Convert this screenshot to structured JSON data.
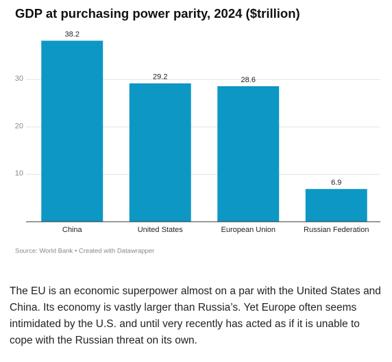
{
  "chart_data": {
    "type": "bar",
    "title": "GDP at purchasing power parity, 2024 ($trillion)",
    "categories": [
      "China",
      "United States",
      "European Union",
      "Russian Federation"
    ],
    "values": [
      38.2,
      29.2,
      28.6,
      6.9
    ],
    "color": "#0c97c4",
    "ylim": [
      0,
      40
    ],
    "yticks": [
      10,
      20,
      30
    ],
    "grid": true,
    "source": "Source: World Bank • Created with Datawrapper"
  },
  "body_text": "The EU is an economic superpower almost on a par with the United States and China. Its economy is vastly larger than Russia’s. Yet Europe often seems intimidated by the U.S. and until very recently has acted as if it is unable to cope with the Russian threat on its own."
}
